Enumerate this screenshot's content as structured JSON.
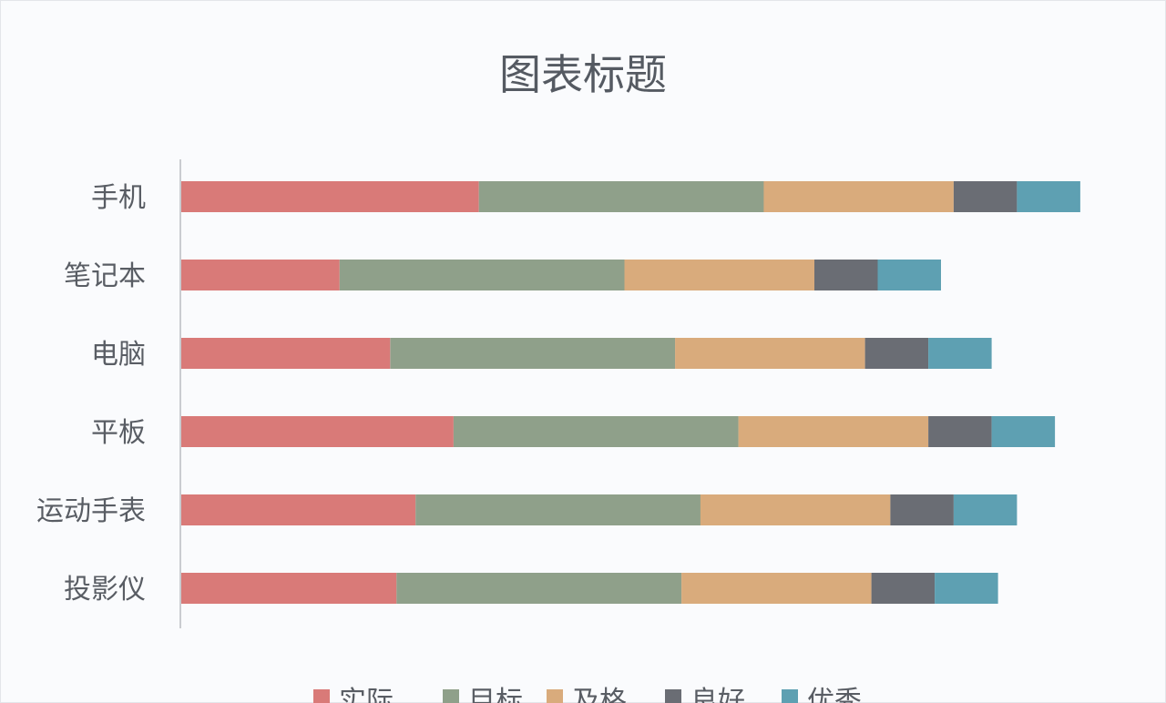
{
  "chart_data": {
    "type": "bar",
    "orientation": "horizontal",
    "stacked": true,
    "title": "图表标题",
    "categories": [
      "手机",
      "笔记本",
      "电脑",
      "平板",
      "运动手表",
      "投影仪"
    ],
    "series": [
      {
        "name": "实际",
        "color": "#d97a78",
        "values": [
          47,
          25,
          33,
          43,
          37,
          34
        ]
      },
      {
        "name": "目标",
        "color": "#8fa08a",
        "values": [
          45,
          45,
          45,
          45,
          45,
          45
        ]
      },
      {
        "name": "及格",
        "color": "#d9ab7c",
        "values": [
          30,
          30,
          30,
          30,
          30,
          30
        ]
      },
      {
        "name": "良好",
        "color": "#6a6d74",
        "values": [
          10,
          10,
          10,
          10,
          10,
          10
        ]
      },
      {
        "name": "优秀",
        "color": "#5ea0b2",
        "values": [
          10,
          10,
          10,
          10,
          10,
          10
        ]
      }
    ],
    "xlim": [
      0,
      145
    ],
    "grid": false,
    "legend_position": "bottom"
  }
}
